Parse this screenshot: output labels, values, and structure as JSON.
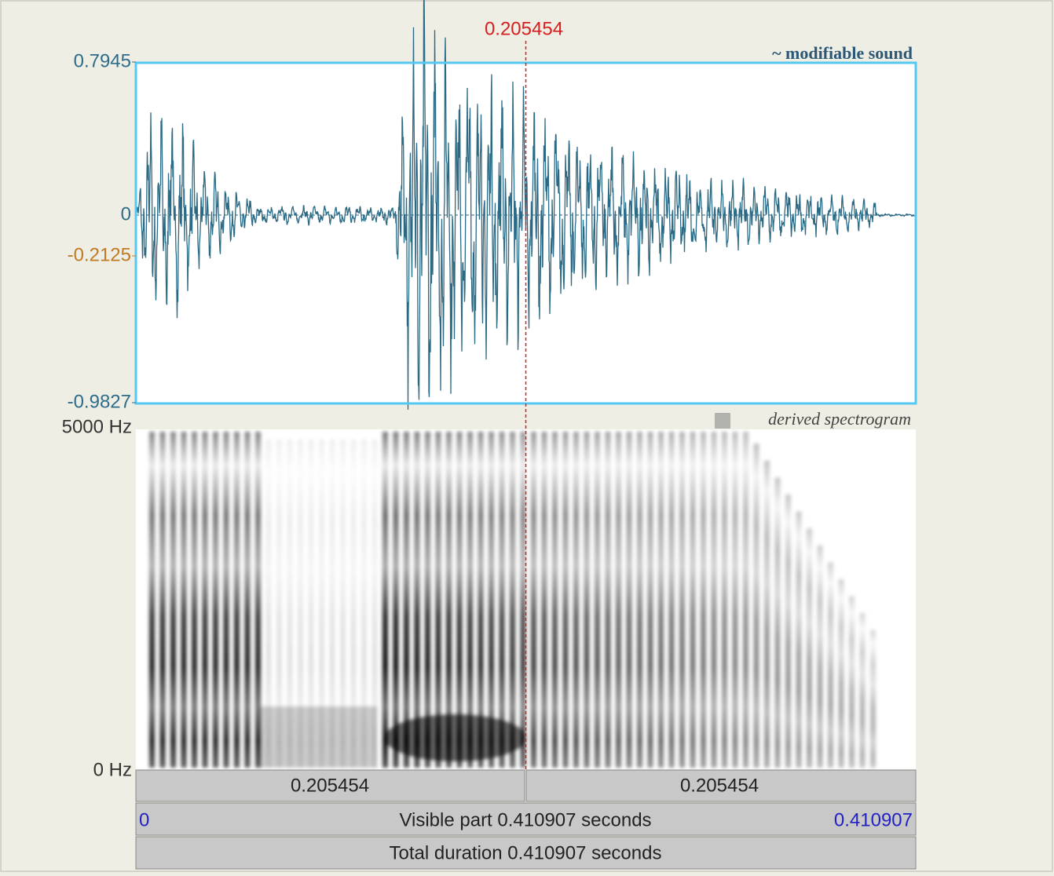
{
  "cursor": {
    "time": "0.205454"
  },
  "sound_panel": {
    "title": "~ modifiable sound",
    "y_max": "0.7945",
    "y_zero": "0",
    "y_marked": "-0.2125",
    "y_min": "-0.9827"
  },
  "spectrogram_panel": {
    "title": "derived spectrogram",
    "f_max": "5000 Hz",
    "f_min": "0 Hz"
  },
  "time_bar": {
    "left_segment": "0.205454",
    "right_segment": "0.205454",
    "start": "0",
    "visible_part": "Visible part 0.410907 seconds",
    "end": "0.410907",
    "total_duration": "Total duration 0.410907 seconds"
  }
}
